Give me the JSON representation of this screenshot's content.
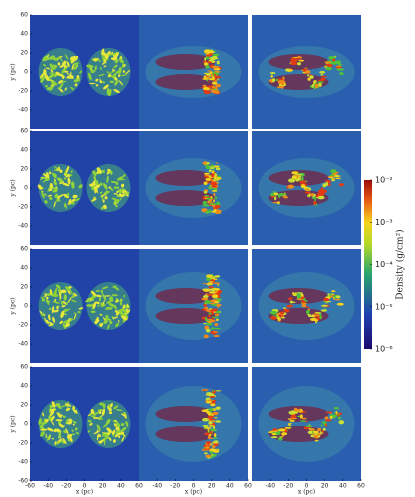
{
  "chart_data": {
    "type": "image-grid",
    "rows": 4,
    "cols": 3,
    "xlabel": "x (pc)",
    "ylabel": "y (pc)",
    "xlim": [
      -60,
      60
    ],
    "ylim": [
      -60,
      60
    ],
    "xticks": [
      -60,
      -40,
      -20,
      0,
      20,
      40,
      60
    ],
    "yticks": [
      -60,
      -40,
      -20,
      0,
      20,
      40,
      60
    ],
    "colorbar": {
      "label": "Density (g/cm²)",
      "log": true,
      "clim": [
        1e-06,
        0.01
      ],
      "ticks": [
        {
          "value": 0.01,
          "label": "10⁻²"
        },
        {
          "value": 0.001,
          "label": "10⁻³"
        },
        {
          "value": 0.0001,
          "label": "10⁻⁴"
        },
        {
          "value": 1e-05,
          "label": "10⁻⁵"
        },
        {
          "value": 1e-06,
          "label": "10⁻⁶"
        }
      ]
    }
  }
}
